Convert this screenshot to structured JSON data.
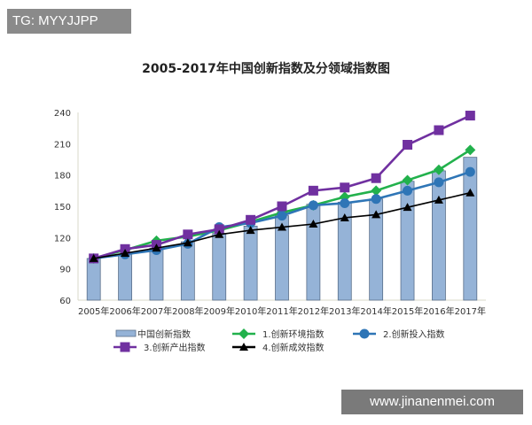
{
  "watermarks": {
    "top_left": "TG: MYYJJPP",
    "bottom_right": "www.jinanenmei.com"
  },
  "chart_data": {
    "type": "bar+line",
    "title": "2005-2017年中国创新指数及分领域指数图",
    "categories": [
      "2005年",
      "2006年",
      "2007年",
      "2008年",
      "2009年",
      "2010年",
      "2011年",
      "2012年",
      "2013年",
      "2014年",
      "2015年",
      "2016年",
      "2017年"
    ],
    "ylim": [
      60,
      240
    ],
    "yticks": [
      60,
      90,
      120,
      150,
      180,
      210,
      240
    ],
    "grid": false,
    "legend_position": "bottom",
    "series": [
      {
        "name": "中国创新指数",
        "kind": "bar",
        "color": "#95b3d7",
        "values": [
          100,
          104,
          110,
          116,
          124,
          131,
          141,
          152,
          154,
          157,
          174,
          184,
          197
        ]
      },
      {
        "name": "1.创新环境指数",
        "kind": "line",
        "marker": "diamond",
        "color": "#22b14c",
        "values": [
          100,
          108,
          117,
          121,
          127,
          135,
          144,
          151,
          159,
          165,
          175,
          185,
          204
        ]
      },
      {
        "name": "2.创新投入指数",
        "kind": "line",
        "marker": "circle",
        "color": "#2e75b6",
        "values": [
          100,
          104,
          108,
          114,
          130,
          134,
          141,
          151,
          153,
          157,
          165,
          173,
          183
        ]
      },
      {
        "name": "3.创新产出指数",
        "kind": "line",
        "marker": "square",
        "color": "#7030a0",
        "values": [
          100,
          109,
          113,
          123,
          128,
          137,
          150,
          165,
          168,
          177,
          209,
          223,
          237
        ]
      },
      {
        "name": "4.创新成效指数",
        "kind": "line",
        "marker": "triangle",
        "color": "#000000",
        "values": [
          100,
          105,
          110,
          115,
          123,
          127,
          130,
          133,
          139,
          142,
          149,
          156,
          163
        ]
      }
    ]
  }
}
